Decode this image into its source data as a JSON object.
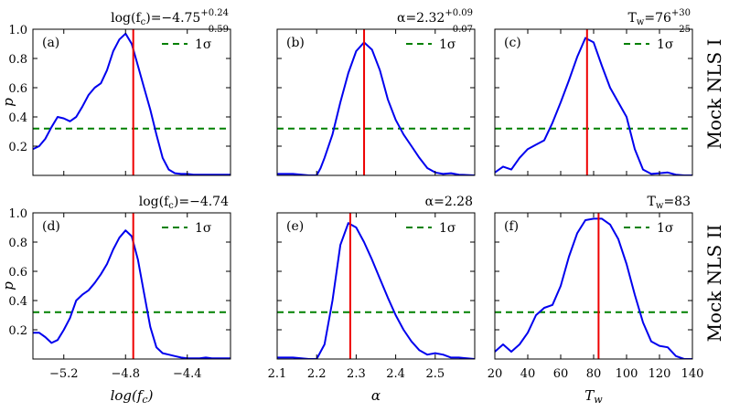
{
  "rows": [
    {
      "label": "Mock NLS I"
    },
    {
      "label": "Mock NLS II"
    }
  ],
  "y_axis": {
    "label": "p",
    "ticks": [
      "0.2",
      "0.4",
      "0.6",
      "0.8",
      "1.0"
    ],
    "tick_values": [
      0.2,
      0.4,
      0.6,
      0.8,
      1.0
    ],
    "ylim": [
      0,
      1.0
    ]
  },
  "legend_label": "1σ",
  "colors": {
    "curve": "#0000ee",
    "marker": "#ee0000",
    "sigma": "#008000"
  },
  "columns": [
    {
      "xlabel": "log(f",
      "xlabel_sub": "c",
      "xlabel_suffix": ")",
      "xlim": [
        -5.4,
        -4.12
      ],
      "ticks": [
        "−5.2",
        "−4.8",
        "−4.4"
      ],
      "tick_values": [
        -5.2,
        -4.8,
        -4.4
      ]
    },
    {
      "xlabel": "α",
      "xlabel_sub": "",
      "xlabel_suffix": "",
      "xlim": [
        2.1,
        2.6
      ],
      "ticks": [
        "2.1",
        "2.2",
        "2.3",
        "2.4",
        "2.5"
      ],
      "tick_values": [
        2.1,
        2.2,
        2.3,
        2.4,
        2.5
      ]
    },
    {
      "xlabel": "T",
      "xlabel_sub": "w",
      "xlabel_suffix": "",
      "xlim": [
        20,
        140
      ],
      "ticks": [
        "20",
        "40",
        "60",
        "80",
        "100",
        "120",
        "140"
      ],
      "tick_values": [
        20,
        40,
        60,
        80,
        100,
        120,
        140
      ]
    }
  ],
  "chart_data": [
    {
      "type": "line",
      "panel": "(a)",
      "title": {
        "pre": "log(f",
        "sub": "c",
        "mid": ")=−4.75",
        "sup": "+0.24",
        "low": "−0.59"
      },
      "marker_x": -4.75,
      "sigma_level": 0.32,
      "x": [
        -5.4,
        -5.36,
        -5.32,
        -5.28,
        -5.24,
        -5.2,
        -5.16,
        -5.12,
        -5.08,
        -5.04,
        -5.0,
        -4.96,
        -4.92,
        -4.88,
        -4.84,
        -4.8,
        -4.76,
        -4.72,
        -4.68,
        -4.64,
        -4.6,
        -4.56,
        -4.52,
        -4.48,
        -4.44,
        -4.4,
        -4.36,
        -4.32,
        -4.28,
        -4.24,
        -4.2,
        -4.16,
        -4.12
      ],
      "y": [
        0.18,
        0.2,
        0.25,
        0.33,
        0.4,
        0.39,
        0.37,
        0.4,
        0.47,
        0.55,
        0.6,
        0.63,
        0.72,
        0.85,
        0.93,
        0.97,
        0.9,
        0.75,
        0.6,
        0.45,
        0.28,
        0.12,
        0.04,
        0.015,
        0.01,
        0.01,
        0.005,
        0.005,
        0.005,
        0.005,
        0.005,
        0.005,
        0.005
      ]
    },
    {
      "type": "line",
      "panel": "(b)",
      "title": {
        "pre": "α=2.32",
        "sub": "",
        "mid": "",
        "sup": "+0.09",
        "low": "−0.07"
      },
      "marker_x": 2.32,
      "sigma_level": 0.32,
      "x": [
        2.1,
        2.14,
        2.18,
        2.2,
        2.21,
        2.22,
        2.24,
        2.26,
        2.28,
        2.3,
        2.32,
        2.34,
        2.36,
        2.38,
        2.4,
        2.42,
        2.44,
        2.46,
        2.48,
        2.5,
        2.52,
        2.54,
        2.56,
        2.6
      ],
      "y": [
        0.01,
        0.01,
        0.0,
        0.0,
        0.05,
        0.12,
        0.28,
        0.5,
        0.7,
        0.85,
        0.91,
        0.86,
        0.72,
        0.52,
        0.38,
        0.28,
        0.2,
        0.12,
        0.05,
        0.02,
        0.01,
        0.015,
        0.005,
        0.0
      ]
    },
    {
      "type": "line",
      "panel": "(c)",
      "title": {
        "pre": "T",
        "sub": "w",
        "mid": "=76",
        "sup": "+30",
        "low": "−25"
      },
      "marker_x": 76,
      "sigma_level": 0.32,
      "x": [
        20,
        25,
        30,
        35,
        40,
        45,
        50,
        55,
        60,
        65,
        70,
        75,
        80,
        85,
        90,
        95,
        100,
        105,
        110,
        115,
        120,
        125,
        130,
        135,
        140
      ],
      "y": [
        0.02,
        0.06,
        0.04,
        0.12,
        0.18,
        0.21,
        0.24,
        0.36,
        0.5,
        0.65,
        0.81,
        0.94,
        0.91,
        0.75,
        0.6,
        0.5,
        0.4,
        0.18,
        0.04,
        0.01,
        0.015,
        0.02,
        0.005,
        0.0,
        0.0
      ]
    },
    {
      "type": "line",
      "panel": "(d)",
      "title": {
        "pre": "log(f",
        "sub": "c",
        "mid": ")=−4.74",
        "sup": "",
        "low": ""
      },
      "marker_x": -4.75,
      "sigma_level": 0.32,
      "x": [
        -5.4,
        -5.36,
        -5.32,
        -5.28,
        -5.24,
        -5.2,
        -5.16,
        -5.12,
        -5.08,
        -5.04,
        -5.0,
        -4.96,
        -4.92,
        -4.88,
        -4.84,
        -4.8,
        -4.76,
        -4.72,
        -4.68,
        -4.64,
        -4.6,
        -4.56,
        -4.52,
        -4.48,
        -4.44,
        -4.4,
        -4.36,
        -4.32,
        -4.28,
        -4.24,
        -4.2,
        -4.16,
        -4.12
      ],
      "y": [
        0.18,
        0.18,
        0.15,
        0.11,
        0.13,
        0.2,
        0.28,
        0.4,
        0.44,
        0.47,
        0.52,
        0.58,
        0.65,
        0.75,
        0.83,
        0.88,
        0.84,
        0.68,
        0.45,
        0.22,
        0.08,
        0.04,
        0.03,
        0.02,
        0.01,
        0.005,
        0.005,
        0.005,
        0.01,
        0.005,
        0.005,
        0.005,
        0.005
      ]
    },
    {
      "type": "line",
      "panel": "(e)",
      "title": {
        "pre": "α=2.28",
        "sub": "",
        "mid": "",
        "sup": "",
        "low": ""
      },
      "marker_x": 2.285,
      "sigma_level": 0.32,
      "x": [
        2.1,
        2.14,
        2.18,
        2.2,
        2.22,
        2.24,
        2.26,
        2.28,
        2.3,
        2.32,
        2.34,
        2.36,
        2.38,
        2.4,
        2.42,
        2.44,
        2.46,
        2.48,
        2.5,
        2.52,
        2.54,
        2.56,
        2.6
      ],
      "y": [
        0.01,
        0.01,
        0.0,
        0.0,
        0.1,
        0.4,
        0.78,
        0.93,
        0.9,
        0.8,
        0.68,
        0.55,
        0.42,
        0.3,
        0.2,
        0.12,
        0.06,
        0.03,
        0.04,
        0.03,
        0.01,
        0.01,
        0.0
      ]
    },
    {
      "type": "line",
      "panel": "(f)",
      "title": {
        "pre": "T",
        "sub": "w",
        "mid": "=83",
        "sup": "",
        "low": ""
      },
      "marker_x": 83,
      "sigma_level": 0.32,
      "x": [
        20,
        25,
        30,
        35,
        40,
        45,
        50,
        55,
        60,
        65,
        70,
        75,
        80,
        85,
        90,
        95,
        100,
        105,
        110,
        115,
        120,
        125,
        130,
        135,
        140
      ],
      "y": [
        0.05,
        0.1,
        0.05,
        0.1,
        0.18,
        0.3,
        0.35,
        0.37,
        0.5,
        0.7,
        0.86,
        0.95,
        0.96,
        0.96,
        0.92,
        0.82,
        0.65,
        0.44,
        0.25,
        0.12,
        0.09,
        0.08,
        0.02,
        0.0,
        0.0
      ]
    }
  ]
}
